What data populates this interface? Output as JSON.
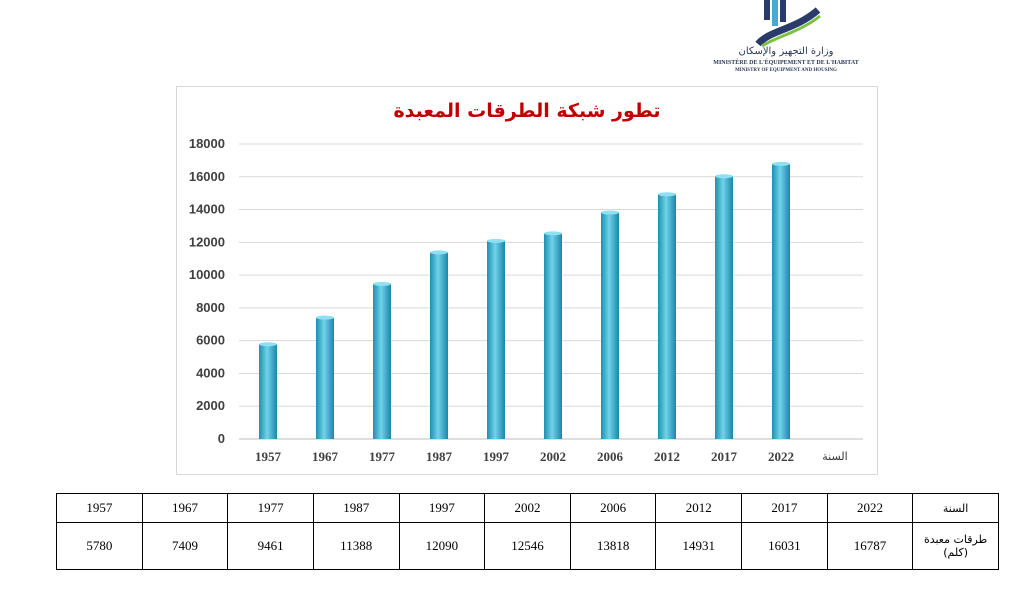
{
  "logo": {
    "ministry_ar": "وزارة التجهيز والإسكان",
    "ministry_fr": "MINISTÈRE DE L'ÉQUIPEMENT ET DE L'HABITAT",
    "ministry_en": "MINISTRY OF EQUIPMENT AND HOUSING",
    "colors": {
      "navy": "#2a3a6a",
      "green": "#7cc242",
      "blue": "#4aa8d8"
    }
  },
  "chart_data": {
    "type": "bar",
    "title": "تطور شبكة الطرقات المعبدة",
    "xlabel": "السنة",
    "ylabel": "",
    "categories": [
      "1957",
      "1967",
      "1977",
      "1987",
      "1997",
      "2002",
      "2006",
      "2012",
      "2017",
      "2022"
    ],
    "values": [
      5780,
      7409,
      9461,
      11388,
      12090,
      12546,
      13818,
      14931,
      16031,
      16787
    ],
    "ylim": [
      0,
      18000
    ],
    "yticks": [
      "0",
      "2000",
      "4000",
      "6000",
      "8000",
      "10000",
      "12000",
      "14000",
      "16000",
      "18000"
    ],
    "grid": true,
    "bar_color": "#3fb3d4",
    "title_color": "#c00000"
  },
  "table": {
    "row1_label": "السنة",
    "row2_label": "طرقات معبدة (كلم)",
    "years": [
      "2022",
      "2017",
      "2012",
      "2006",
      "2002",
      "1997",
      "1987",
      "1977",
      "1967",
      "1957"
    ],
    "lengths": [
      "16787",
      "16031",
      "14931",
      "13818",
      "12546",
      "12090",
      "11388",
      "9461",
      "7409",
      "5780"
    ]
  }
}
